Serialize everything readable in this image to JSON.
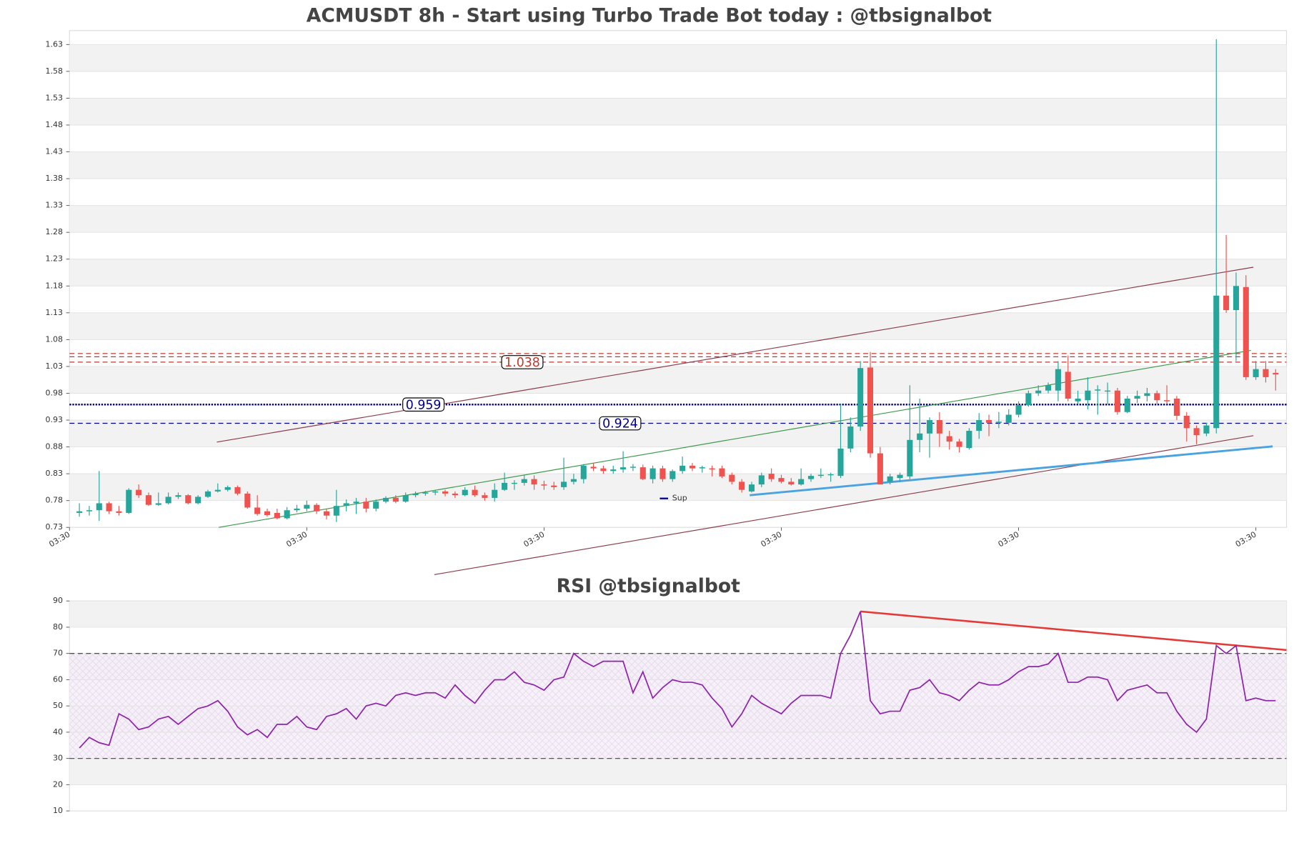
{
  "chart_data": [
    {
      "type": "candlestick",
      "title": "ACMUSDT 8h - Start using Turbo Trade Bot today : @tbsignalbot",
      "xlim": [
        -1,
        122.1
      ],
      "xticks": [
        {
          "value": -1,
          "label": "03:30"
        },
        {
          "value": 23,
          "label": "03:30"
        },
        {
          "value": 47,
          "label": "03:30"
        },
        {
          "value": 71,
          "label": "03:30"
        },
        {
          "value": 95,
          "label": "03:30"
        },
        {
          "value": 119,
          "label": "03:30"
        }
      ],
      "ylim": [
        0.73,
        1.656
      ],
      "yticks": [
        0.73,
        0.78,
        0.83,
        0.88,
        0.93,
        0.98,
        1.03,
        1.08,
        1.13,
        1.18,
        1.23,
        1.28,
        1.33,
        1.38,
        1.43,
        1.48,
        1.53,
        1.58,
        1.63
      ],
      "grid": true,
      "up_color": "#26a69a",
      "down_color": "#ef5350",
      "ohlc": [
        [
          0.757,
          0.775,
          0.75,
          0.76
        ],
        [
          0.76,
          0.77,
          0.752,
          0.762
        ],
        [
          0.762,
          0.835,
          0.742,
          0.775
        ],
        [
          0.775,
          0.778,
          0.755,
          0.76
        ],
        [
          0.76,
          0.77,
          0.752,
          0.757
        ],
        [
          0.757,
          0.803,
          0.755,
          0.8
        ],
        [
          0.8,
          0.81,
          0.785,
          0.79
        ],
        [
          0.79,
          0.795,
          0.77,
          0.772
        ],
        [
          0.772,
          0.795,
          0.77,
          0.775
        ],
        [
          0.775,
          0.795,
          0.773,
          0.787
        ],
        [
          0.787,
          0.795,
          0.783,
          0.79
        ],
        [
          0.79,
          0.792,
          0.773,
          0.775
        ],
        [
          0.775,
          0.79,
          0.773,
          0.787
        ],
        [
          0.787,
          0.8,
          0.785,
          0.797
        ],
        [
          0.797,
          0.812,
          0.795,
          0.8
        ],
        [
          0.8,
          0.808,
          0.797,
          0.805
        ],
        [
          0.805,
          0.808,
          0.79,
          0.793
        ],
        [
          0.793,
          0.797,
          0.765,
          0.767
        ],
        [
          0.767,
          0.79,
          0.752,
          0.755
        ],
        [
          0.76,
          0.765,
          0.75,
          0.753
        ],
        [
          0.757,
          0.765,
          0.745,
          0.747
        ],
        [
          0.747,
          0.768,
          0.745,
          0.762
        ],
        [
          0.762,
          0.772,
          0.758,
          0.765
        ],
        [
          0.765,
          0.78,
          0.76,
          0.772
        ],
        [
          0.772,
          0.775,
          0.755,
          0.76
        ],
        [
          0.76,
          0.765,
          0.745,
          0.752
        ],
        [
          0.752,
          0.8,
          0.74,
          0.77
        ],
        [
          0.77,
          0.782,
          0.76,
          0.775
        ],
        [
          0.775,
          0.785,
          0.755,
          0.778
        ],
        [
          0.778,
          0.785,
          0.758,
          0.765
        ],
        [
          0.765,
          0.782,
          0.76,
          0.778
        ],
        [
          0.778,
          0.788,
          0.775,
          0.785
        ],
        [
          0.785,
          0.79,
          0.775,
          0.778
        ],
        [
          0.778,
          0.795,
          0.776,
          0.79
        ],
        [
          0.79,
          0.797,
          0.786,
          0.793
        ],
        [
          0.793,
          0.798,
          0.789,
          0.795
        ],
        [
          0.795,
          0.8,
          0.79,
          0.797
        ],
        [
          0.797,
          0.8,
          0.788,
          0.793
        ],
        [
          0.793,
          0.797,
          0.785,
          0.79
        ],
        [
          0.79,
          0.805,
          0.788,
          0.8
        ],
        [
          0.8,
          0.808,
          0.787,
          0.79
        ],
        [
          0.79,
          0.795,
          0.78,
          0.785
        ],
        [
          0.785,
          0.812,
          0.778,
          0.8
        ],
        [
          0.8,
          0.832,
          0.798,
          0.813
        ],
        [
          0.813,
          0.818,
          0.8,
          0.813
        ],
        [
          0.813,
          0.827,
          0.808,
          0.82
        ],
        [
          0.82,
          0.827,
          0.8,
          0.81
        ],
        [
          0.81,
          0.817,
          0.8,
          0.808
        ],
        [
          0.808,
          0.815,
          0.8,
          0.805
        ],
        [
          0.805,
          0.86,
          0.8,
          0.815
        ],
        [
          0.815,
          0.83,
          0.81,
          0.82
        ],
        [
          0.82,
          0.848,
          0.812,
          0.845
        ],
        [
          0.843,
          0.85,
          0.835,
          0.84
        ],
        [
          0.84,
          0.845,
          0.83,
          0.835
        ],
        [
          0.835,
          0.845,
          0.83,
          0.838
        ],
        [
          0.838,
          0.872,
          0.832,
          0.842
        ],
        [
          0.842,
          0.848,
          0.835,
          0.843
        ],
        [
          0.842,
          0.847,
          0.818,
          0.82
        ],
        [
          0.82,
          0.845,
          0.812,
          0.84
        ],
        [
          0.84,
          0.845,
          0.815,
          0.82
        ],
        [
          0.82,
          0.838,
          0.815,
          0.835
        ],
        [
          0.835,
          0.862,
          0.83,
          0.845
        ],
        [
          0.845,
          0.85,
          0.835,
          0.84
        ],
        [
          0.84,
          0.845,
          0.832,
          0.842
        ],
        [
          0.84,
          0.845,
          0.825,
          0.838
        ],
        [
          0.84,
          0.845,
          0.822,
          0.825
        ],
        [
          0.828,
          0.832,
          0.81,
          0.815
        ],
        [
          0.815,
          0.82,
          0.795,
          0.8
        ],
        [
          0.797,
          0.815,
          0.795,
          0.81
        ],
        [
          0.81,
          0.832,
          0.805,
          0.827
        ],
        [
          0.83,
          0.84,
          0.815,
          0.82
        ],
        [
          0.822,
          0.828,
          0.812,
          0.815
        ],
        [
          0.815,
          0.822,
          0.808,
          0.81
        ],
        [
          0.81,
          0.84,
          0.808,
          0.82
        ],
        [
          0.82,
          0.83,
          0.815,
          0.826
        ],
        [
          0.826,
          0.84,
          0.822,
          0.828
        ],
        [
          0.828,
          0.832,
          0.815,
          0.829
        ],
        [
          0.826,
          0.96,
          0.822,
          0.877
        ],
        [
          0.877,
          0.935,
          0.87,
          0.918
        ],
        [
          0.918,
          1.04,
          0.91,
          1.027
        ],
        [
          1.028,
          1.057,
          0.86,
          0.868
        ],
        [
          0.868,
          0.88,
          0.81,
          0.81
        ],
        [
          0.815,
          0.83,
          0.81,
          0.825
        ],
        [
          0.822,
          0.832,
          0.815,
          0.828
        ],
        [
          0.825,
          0.995,
          0.82,
          0.893
        ],
        [
          0.893,
          0.97,
          0.87,
          0.905
        ],
        [
          0.905,
          0.935,
          0.86,
          0.93
        ],
        [
          0.93,
          0.945,
          0.88,
          0.905
        ],
        [
          0.9,
          0.91,
          0.875,
          0.89
        ],
        [
          0.89,
          0.895,
          0.87,
          0.88
        ],
        [
          0.878,
          0.915,
          0.875,
          0.91
        ],
        [
          0.91,
          0.943,
          0.895,
          0.93
        ],
        [
          0.93,
          0.94,
          0.9,
          0.925
        ],
        [
          0.925,
          0.945,
          0.915,
          0.927
        ],
        [
          0.925,
          0.95,
          0.92,
          0.94
        ],
        [
          0.94,
          0.965,
          0.935,
          0.958
        ],
        [
          0.958,
          0.985,
          0.955,
          0.98
        ],
        [
          0.98,
          0.995,
          0.975,
          0.985
        ],
        [
          0.985,
          1.0,
          0.98,
          0.995
        ],
        [
          0.985,
          1.04,
          0.965,
          1.025
        ],
        [
          1.02,
          1.05,
          0.965,
          0.97
        ],
        [
          0.965,
          0.985,
          0.96,
          0.97
        ],
        [
          0.967,
          1.01,
          0.95,
          0.985
        ],
        [
          0.985,
          0.995,
          0.94,
          0.987
        ],
        [
          0.985,
          1.0,
          0.96,
          0.985
        ],
        [
          0.985,
          0.99,
          0.94,
          0.945
        ],
        [
          0.945,
          0.975,
          0.943,
          0.97
        ],
        [
          0.97,
          0.985,
          0.962,
          0.975
        ],
        [
          0.975,
          0.99,
          0.965,
          0.98
        ],
        [
          0.98,
          0.985,
          0.96,
          0.967
        ],
        [
          0.967,
          0.995,
          0.96,
          0.965
        ],
        [
          0.97,
          0.975,
          0.93,
          0.938
        ],
        [
          0.938,
          0.945,
          0.89,
          0.915
        ],
        [
          0.915,
          0.92,
          0.885,
          0.902
        ],
        [
          0.905,
          0.925,
          0.9,
          0.92
        ],
        [
          0.915,
          1.64,
          0.905,
          1.162
        ],
        [
          1.162,
          1.275,
          1.13,
          1.135
        ],
        [
          1.135,
          1.205,
          1.04,
          1.18
        ],
        [
          1.178,
          1.2,
          1.005,
          1.01
        ],
        [
          1.01,
          1.04,
          1.005,
          1.025
        ],
        [
          1.025,
          1.04,
          1.0,
          1.01
        ],
        [
          1.018,
          1.025,
          0.985,
          1.015
        ]
      ],
      "levels": [
        {
          "value": 1.054,
          "color": "#c0392b",
          "style": "dashed"
        },
        {
          "value": 1.048,
          "color": "#c0392b",
          "style": "dashed"
        },
        {
          "value": 1.038,
          "color": "#c0392b",
          "style": "dashed",
          "labeled": true
        },
        {
          "value": 0.959,
          "color": "#00008b",
          "style": "dotted",
          "labeled": true
        },
        {
          "value": 0.924,
          "color": "#00008b",
          "style": "dashed",
          "labeled": true
        }
      ],
      "trendlines": [
        {
          "x": [
            13.9,
            118.75
          ],
          "y": [
            0.889,
            1.215
          ],
          "color": "#8b3a4a"
        },
        {
          "x": [
            35.9,
            118.75
          ],
          "y": [
            0.642,
            0.901
          ],
          "color": "#8b3a4a"
        },
        {
          "x": [
            14.1,
            118.5
          ],
          "y": [
            0.73,
            1.06
          ],
          "color": "#3a9a4a"
        },
        {
          "x": [
            67.8,
            120.7
          ],
          "y": [
            0.79,
            0.881
          ],
          "color": "#4aa3df",
          "name": "Sup"
        }
      ],
      "legend": "lower center"
    },
    {
      "type": "line",
      "title": "RSI @tbsignalbot",
      "xlim": [
        -1,
        122.1
      ],
      "ylim": [
        10,
        90
      ],
      "yticks": [
        10,
        20,
        30,
        40,
        50,
        60,
        70,
        80,
        90
      ],
      "grid": true,
      "color": "#8e24aa",
      "values": [
        34,
        38,
        36,
        35,
        47,
        45,
        41,
        42,
        45,
        46,
        43,
        46,
        49,
        50,
        52,
        48,
        42,
        39,
        41,
        38,
        43,
        43,
        46,
        42,
        41,
        46,
        47,
        49,
        45,
        50,
        51,
        50,
        54,
        55,
        54,
        55,
        55,
        53,
        58,
        54,
        51,
        56,
        60,
        60,
        63,
        59,
        58,
        56,
        60,
        61,
        70,
        67,
        65,
        67,
        67,
        67,
        55,
        63,
        53,
        57,
        60,
        59,
        59,
        58,
        53,
        49,
        42,
        47,
        54,
        51,
        49,
        47,
        51,
        54,
        54,
        54,
        53,
        70,
        77,
        86,
        52,
        47,
        48,
        48,
        56,
        57,
        60,
        55,
        54,
        52,
        56,
        59,
        58,
        58,
        60,
        63,
        65,
        65,
        66,
        70,
        59,
        59,
        61,
        61,
        60,
        52,
        56,
        57,
        58,
        55,
        55,
        48,
        43,
        40,
        45,
        73,
        70,
        73,
        52,
        53,
        52,
        52
      ],
      "levels": [
        {
          "value": 70,
          "color": "#555555",
          "style": "dashed"
        },
        {
          "value": 30,
          "color": "#555555",
          "style": "dashed"
        }
      ],
      "band": [
        30,
        70
      ],
      "trendlines": [
        {
          "x": [
            79,
            122.1
          ],
          "y": [
            86,
            71.3
          ],
          "color": "#e53935"
        }
      ]
    }
  ]
}
